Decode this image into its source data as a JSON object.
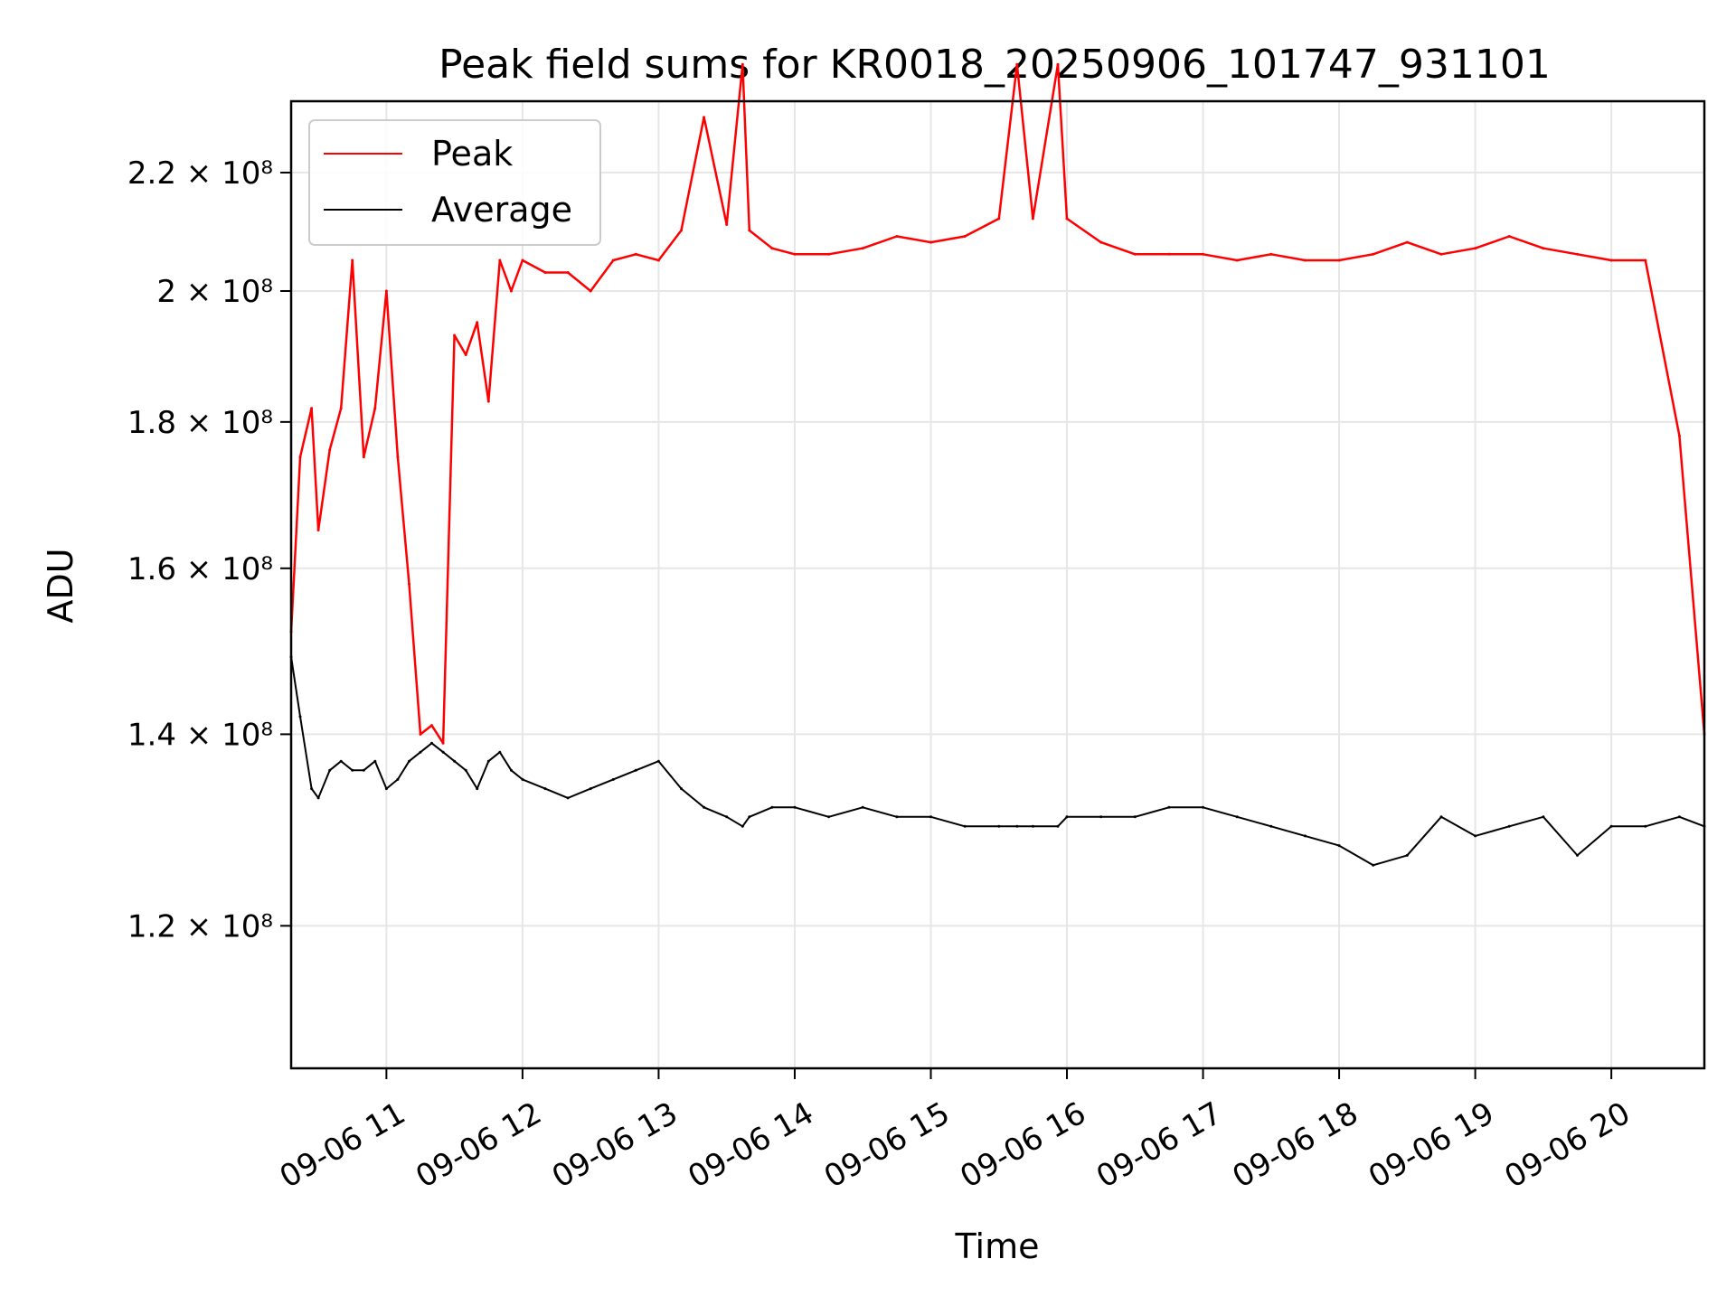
{
  "chart_data": {
    "type": "line",
    "title": "Peak field sums for KR0018_20250906_101747_931101",
    "xlabel": "Time",
    "ylabel": "ADU",
    "x_range": [
      "2025-09-06T10:18:00",
      "2025-09-06T20:41:00"
    ],
    "ylim": [
      107000000,
      233000000
    ],
    "y_scale": "log",
    "grid": true,
    "legend_position": "top-left",
    "x_ticks": [
      "09-06 11",
      "09-06 12",
      "09-06 13",
      "09-06 14",
      "09-06 15",
      "09-06 16",
      "09-06 17",
      "09-06 18",
      "09-06 19",
      "09-06 20"
    ],
    "x_tick_times": [
      "2025-09-06T11:00:00",
      "2025-09-06T12:00:00",
      "2025-09-06T13:00:00",
      "2025-09-06T14:00:00",
      "2025-09-06T15:00:00",
      "2025-09-06T16:00:00",
      "2025-09-06T17:00:00",
      "2025-09-06T18:00:00",
      "2025-09-06T19:00:00",
      "2025-09-06T20:00:00"
    ],
    "y_ticks": [
      {
        "value": 120000000,
        "label": "1.2 × 10⁸"
      },
      {
        "value": 140000000,
        "label": "1.4 × 10⁸"
      },
      {
        "value": 160000000,
        "label": "1.6 × 10⁸"
      },
      {
        "value": 180000000,
        "label": "1.8 × 10⁸"
      },
      {
        "value": 200000000,
        "label": "2 × 10⁸"
      },
      {
        "value": 220000000,
        "label": "2.2 × 10⁸"
      }
    ],
    "series": [
      {
        "name": "Peak",
        "color": "#ff0000",
        "x": [
          "10:18",
          "10:22",
          "10:27",
          "10:30",
          "10:35",
          "10:40",
          "10:45",
          "10:50",
          "10:55",
          "11:00",
          "11:05",
          "11:10",
          "11:15",
          "11:20",
          "11:25",
          "11:30",
          "11:35",
          "11:40",
          "11:45",
          "11:50",
          "11:55",
          "12:00",
          "12:10",
          "12:20",
          "12:30",
          "12:40",
          "12:50",
          "13:00",
          "13:10",
          "13:20",
          "13:30",
          "13:37",
          "13:40",
          "13:50",
          "14:00",
          "14:15",
          "14:30",
          "14:45",
          "15:00",
          "15:15",
          "15:30",
          "15:38",
          "15:45",
          "15:56",
          "16:00",
          "16:15",
          "16:30",
          "16:45",
          "17:00",
          "17:15",
          "17:30",
          "17:45",
          "18:00",
          "18:15",
          "18:30",
          "18:45",
          "19:00",
          "19:15",
          "19:30",
          "19:45",
          "20:00",
          "20:15",
          "20:30",
          "20:41"
        ],
        "y": [
          152000000,
          175000000,
          182000000,
          165000000,
          176000000,
          182000000,
          205000000,
          175000000,
          182000000,
          200000000,
          175000000,
          158000000,
          140000000,
          141000000,
          139000000,
          193000000,
          190000000,
          195000000,
          183000000,
          205000000,
          200000000,
          205000000,
          203000000,
          203000000,
          200000000,
          205000000,
          206000000,
          205000000,
          210000000,
          230000000,
          211000000,
          240000000,
          210000000,
          207000000,
          206000000,
          206000000,
          207000000,
          209000000,
          208000000,
          209000000,
          212000000,
          240000000,
          212000000,
          240000000,
          212000000,
          208000000,
          206000000,
          206000000,
          206000000,
          205000000,
          206000000,
          205000000,
          205000000,
          206000000,
          208000000,
          206000000,
          207000000,
          209000000,
          207000000,
          206000000,
          205000000,
          205000000,
          178000000,
          140000000
        ]
      },
      {
        "name": "Average",
        "color": "#000000",
        "x": [
          "10:18",
          "10:22",
          "10:27",
          "10:30",
          "10:35",
          "10:40",
          "10:45",
          "10:50",
          "10:55",
          "11:00",
          "11:05",
          "11:10",
          "11:15",
          "11:20",
          "11:25",
          "11:30",
          "11:35",
          "11:40",
          "11:45",
          "11:50",
          "11:55",
          "12:00",
          "12:10",
          "12:20",
          "12:30",
          "12:40",
          "12:50",
          "13:00",
          "13:10",
          "13:20",
          "13:30",
          "13:37",
          "13:40",
          "13:50",
          "14:00",
          "14:15",
          "14:30",
          "14:45",
          "15:00",
          "15:15",
          "15:30",
          "15:38",
          "15:45",
          "15:56",
          "16:00",
          "16:15",
          "16:30",
          "16:45",
          "17:00",
          "17:15",
          "17:30",
          "17:45",
          "18:00",
          "18:15",
          "18:30",
          "18:45",
          "19:00",
          "19:15",
          "19:30",
          "19:45",
          "20:00",
          "20:15",
          "20:30",
          "20:41"
        ],
        "y": [
          149000000,
          142000000,
          134000000,
          133000000,
          136000000,
          137000000,
          136000000,
          136000000,
          137000000,
          134000000,
          135000000,
          137000000,
          138000000,
          139000000,
          138000000,
          137000000,
          136000000,
          134000000,
          137000000,
          138000000,
          136000000,
          135000000,
          134000000,
          133000000,
          134000000,
          135000000,
          136000000,
          137000000,
          134000000,
          132000000,
          131000000,
          130000000,
          131000000,
          132000000,
          132000000,
          131000000,
          132000000,
          131000000,
          131000000,
          130000000,
          130000000,
          130000000,
          130000000,
          130000000,
          131000000,
          131000000,
          131000000,
          132000000,
          132000000,
          131000000,
          130000000,
          129000000,
          128000000,
          126000000,
          127000000,
          131000000,
          129000000,
          130000000,
          131000000,
          127000000,
          130000000,
          130000000,
          131000000,
          130000000
        ]
      }
    ]
  }
}
